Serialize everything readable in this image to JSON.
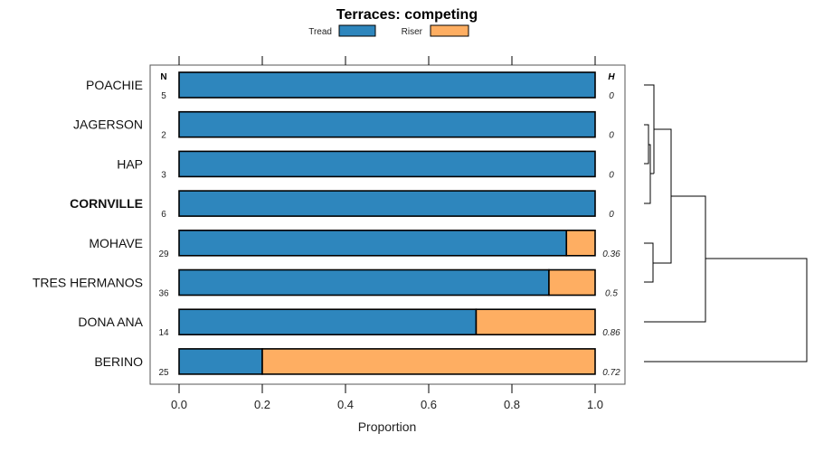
{
  "chart_data": {
    "type": "bar",
    "stacked": true,
    "orientation": "horizontal",
    "title": "Terraces: competing",
    "xlabel": "Proportion",
    "ylabel": "",
    "xlim": [
      0,
      1
    ],
    "xticks": [
      "0.0",
      "0.2",
      "0.4",
      "0.6",
      "0.8",
      "1.0"
    ],
    "legend": {
      "placement": "top",
      "entries": [
        "Tread",
        "Riser"
      ]
    },
    "colors": {
      "Tread": "#2e86bd",
      "Riser": "#feae62"
    },
    "n_header": "N",
    "h_header": "H",
    "categories": [
      "POACHIE",
      "JAGERSON",
      "HAP",
      "CORNVILLE",
      "MOHAVE",
      "TRES HERMANOS",
      "DONA ANA",
      "BERINO"
    ],
    "bold_category": "CORNVILLE",
    "n": [
      "5",
      "2",
      "3",
      "6",
      "29",
      "36",
      "14",
      "25"
    ],
    "h": [
      "0",
      "0",
      "0",
      "0",
      "0.36",
      "0.5",
      "0.86",
      "0.72"
    ],
    "series": [
      {
        "name": "Tread",
        "values": [
          1,
          1,
          1,
          1,
          0.931,
          0.889,
          0.714,
          0.2
        ]
      },
      {
        "name": "Riser",
        "values": [
          0,
          0,
          0,
          0,
          0.069,
          0.111,
          0.286,
          0.8
        ]
      }
    ]
  }
}
